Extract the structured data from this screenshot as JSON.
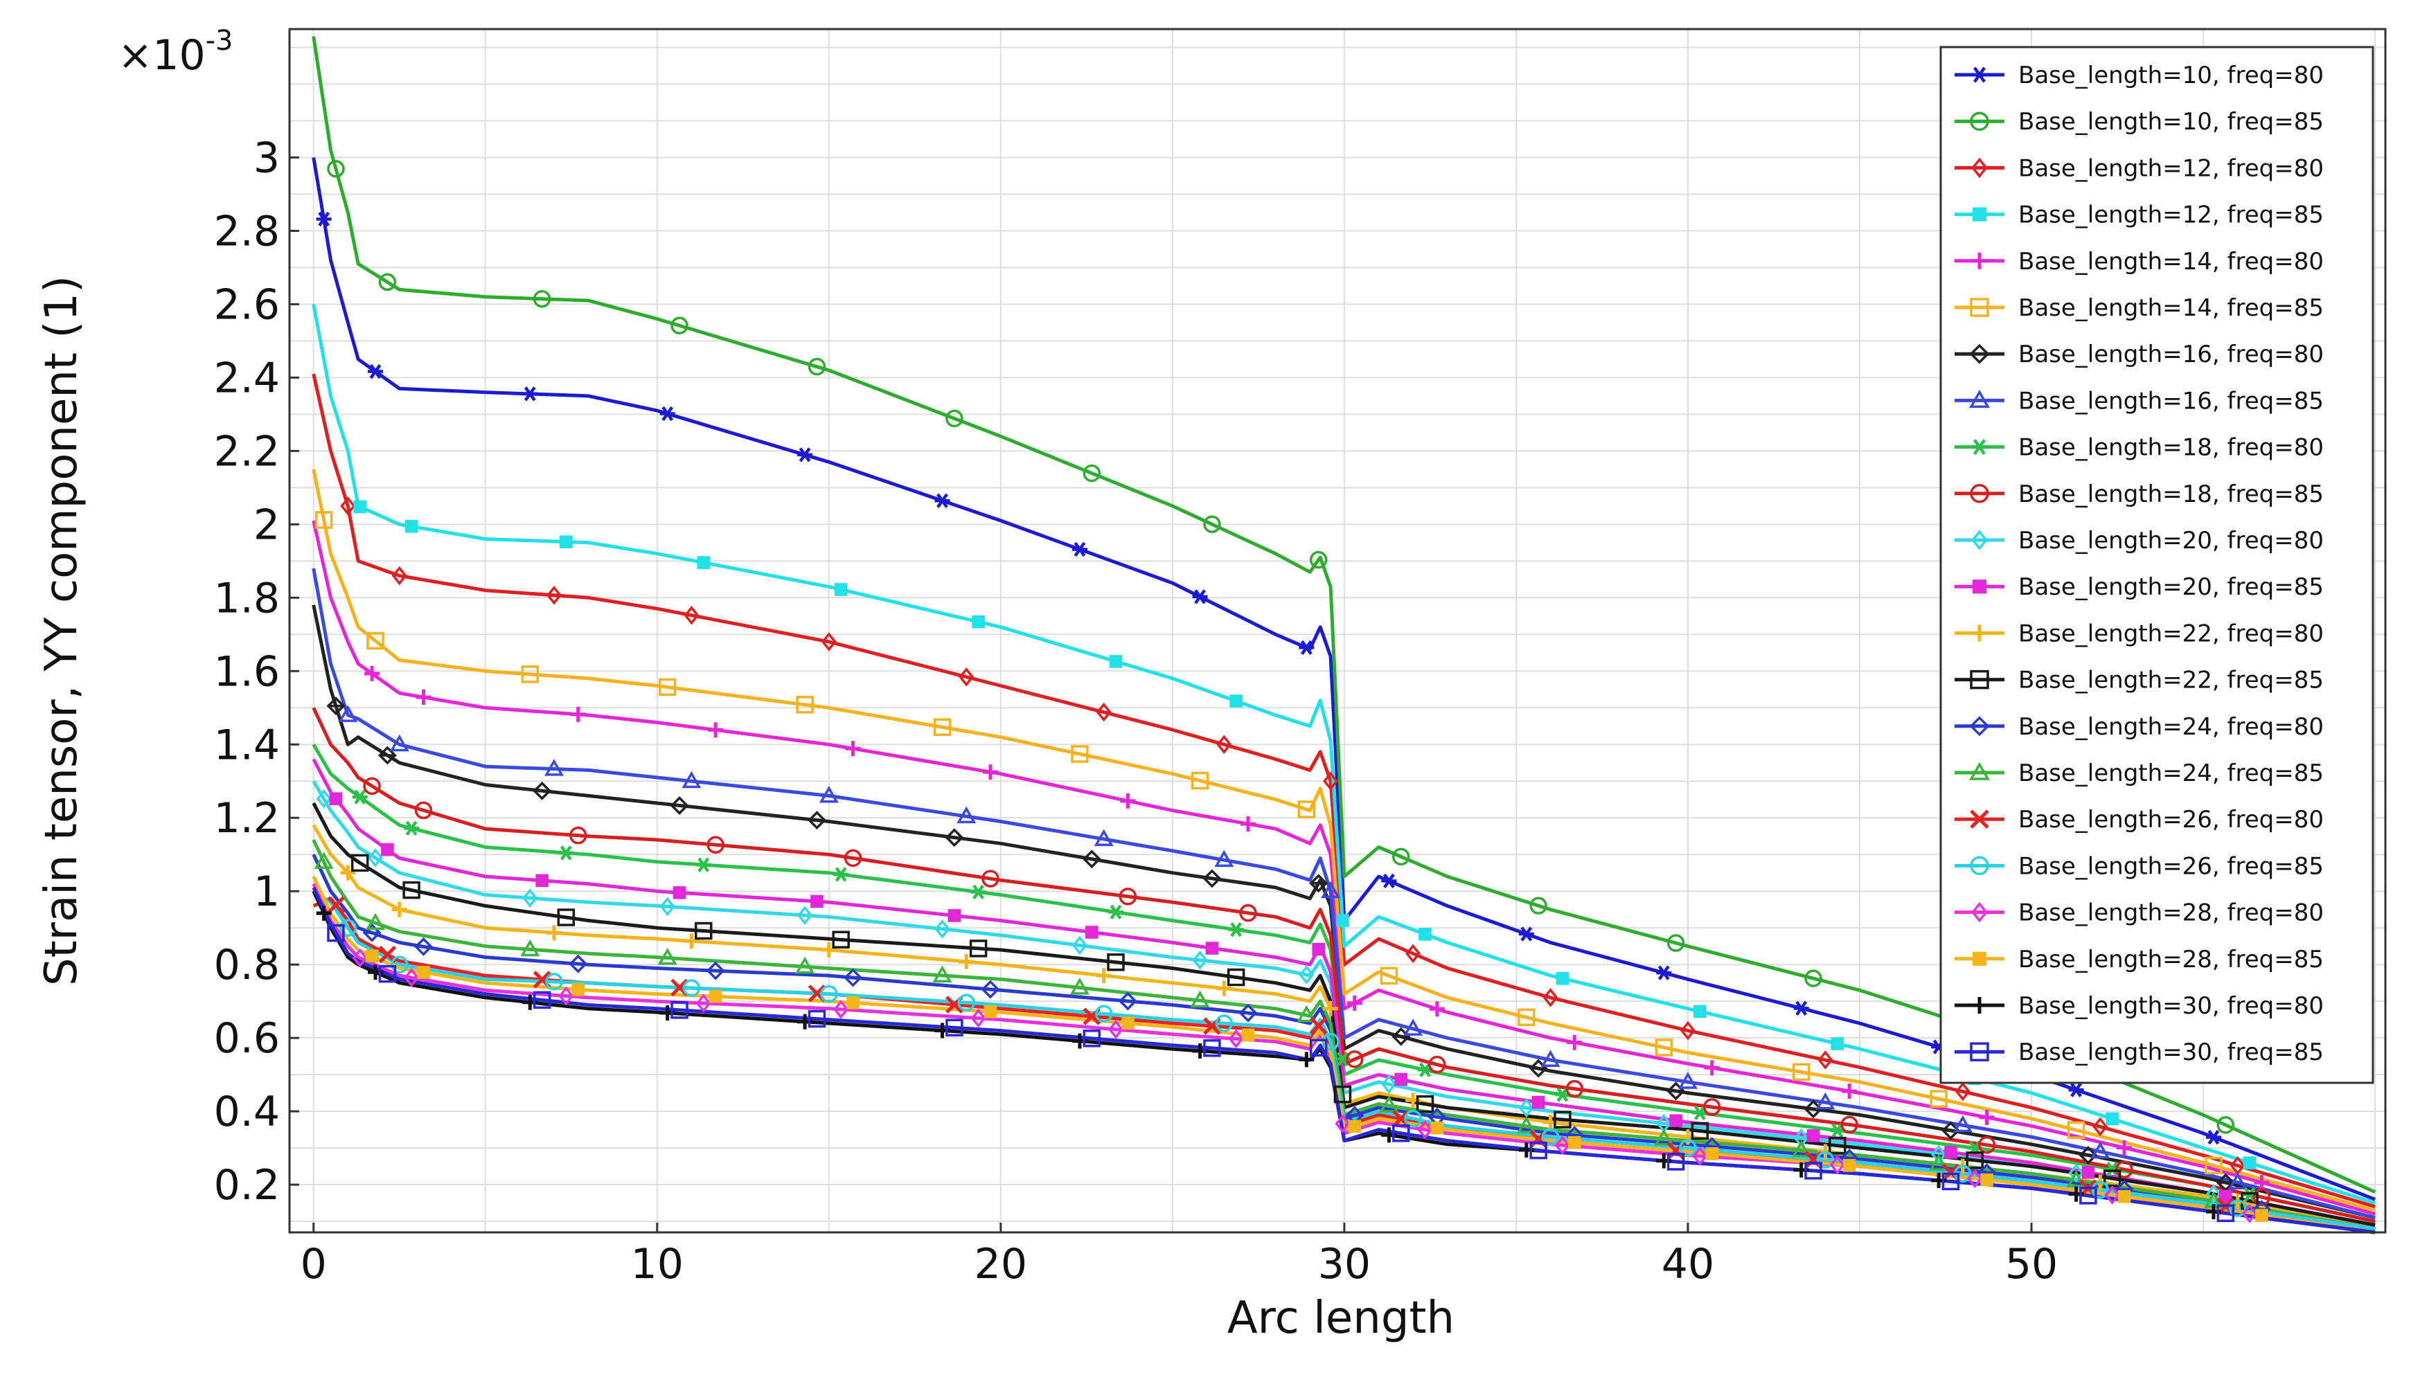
{
  "chart_data": {
    "type": "line",
    "title": "",
    "xlabel": "Arc length",
    "ylabel": "Strain tensor, YY component (1)",
    "y_multiplier_label": "×10",
    "y_multiplier_exp": "-3",
    "xlim": [
      -0.7,
      60.3
    ],
    "ylim": [
      0.07,
      3.35
    ],
    "xticks": [
      0,
      10,
      20,
      30,
      40,
      50
    ],
    "yticks": [
      0.2,
      0.4,
      0.6,
      0.8,
      1,
      1.2,
      1.4,
      1.6,
      1.8,
      2,
      2.2,
      2.4,
      2.6,
      2.8,
      3
    ],
    "ytick_labels": [
      "0.2",
      "0.4",
      "0.6",
      "0.8",
      "1",
      "1.2",
      "1.4",
      "1.6",
      "1.8",
      "2",
      "2.2",
      "2.4",
      "2.6",
      "2.8",
      "3"
    ],
    "xtick_labels": [
      "0",
      "10",
      "20",
      "30",
      "40",
      "50"
    ],
    "grid": true,
    "legend_position": "top-right",
    "x": [
      0,
      0.5,
      1,
      1.3,
      2.5,
      5,
      8,
      10,
      15,
      20,
      25,
      28,
      29,
      29.3,
      29.6,
      30,
      31,
      33,
      36,
      40,
      45,
      50,
      55,
      60
    ],
    "series": [
      {
        "name": "Base_length=10, freq=80",
        "color": "#1b1bd6",
        "marker": "asterisk",
        "values": [
          3.0,
          2.72,
          2.55,
          2.45,
          2.37,
          2.36,
          2.35,
          2.31,
          2.17,
          2.01,
          1.84,
          1.7,
          1.66,
          1.72,
          1.64,
          0.92,
          1.04,
          0.96,
          0.86,
          0.76,
          0.64,
          0.5,
          0.34,
          0.16
        ]
      },
      {
        "name": "Base_length=10, freq=85",
        "color": "#2eac2e",
        "marker": "circle",
        "values": [
          3.33,
          3.02,
          2.85,
          2.71,
          2.64,
          2.62,
          2.61,
          2.56,
          2.42,
          2.24,
          2.05,
          1.92,
          1.87,
          1.91,
          1.83,
          1.04,
          1.12,
          1.04,
          0.95,
          0.85,
          0.73,
          0.58,
          0.39,
          0.18
        ]
      },
      {
        "name": "Base_length=12, freq=80",
        "color": "#e02020",
        "marker": "diamond",
        "values": [
          2.41,
          2.2,
          2.05,
          1.9,
          1.86,
          1.82,
          1.8,
          1.77,
          1.68,
          1.56,
          1.44,
          1.36,
          1.33,
          1.38,
          1.3,
          0.8,
          0.87,
          0.79,
          0.71,
          0.62,
          0.52,
          0.41,
          0.28,
          0.14
        ]
      },
      {
        "name": "Base_length=12, freq=85",
        "color": "#22e0e8",
        "marker": "square-filled",
        "values": [
          2.6,
          2.35,
          2.2,
          2.05,
          2.0,
          1.96,
          1.95,
          1.92,
          1.83,
          1.72,
          1.58,
          1.48,
          1.45,
          1.52,
          1.41,
          0.85,
          0.93,
          0.86,
          0.77,
          0.68,
          0.57,
          0.45,
          0.3,
          0.15
        ]
      },
      {
        "name": "Base_length=14, freq=80",
        "color": "#e824d8",
        "marker": "plus",
        "values": [
          2.01,
          1.8,
          1.68,
          1.62,
          1.54,
          1.5,
          1.48,
          1.46,
          1.4,
          1.32,
          1.22,
          1.17,
          1.13,
          1.18,
          1.1,
          0.68,
          0.73,
          0.67,
          0.6,
          0.53,
          0.45,
          0.36,
          0.25,
          0.12
        ]
      },
      {
        "name": "Base_length=14, freq=85",
        "color": "#f5b21e",
        "marker": "square",
        "values": [
          2.15,
          1.92,
          1.8,
          1.72,
          1.63,
          1.6,
          1.58,
          1.56,
          1.5,
          1.42,
          1.32,
          1.25,
          1.22,
          1.28,
          1.18,
          0.72,
          0.78,
          0.71,
          0.64,
          0.56,
          0.48,
          0.38,
          0.26,
          0.13
        ]
      },
      {
        "name": "Base_length=16, freq=80",
        "color": "#222222",
        "marker": "open-diamond",
        "values": [
          1.78,
          1.55,
          1.4,
          1.42,
          1.35,
          1.29,
          1.26,
          1.24,
          1.19,
          1.13,
          1.05,
          1.01,
          0.98,
          1.03,
          0.96,
          0.57,
          0.62,
          0.57,
          0.51,
          0.45,
          0.39,
          0.31,
          0.22,
          0.11
        ]
      },
      {
        "name": "Base_length=16, freq=85",
        "color": "#3a4ae0",
        "marker": "triangle",
        "values": [
          1.88,
          1.62,
          1.48,
          1.47,
          1.4,
          1.34,
          1.33,
          1.31,
          1.26,
          1.19,
          1.11,
          1.06,
          1.03,
          1.09,
          1.0,
          0.6,
          0.65,
          0.6,
          0.54,
          0.48,
          0.41,
          0.33,
          0.23,
          0.11
        ]
      },
      {
        "name": "Base_length=18, freq=80",
        "color": "#2ac04a",
        "marker": "asterisk",
        "values": [
          1.4,
          1.32,
          1.28,
          1.26,
          1.18,
          1.12,
          1.1,
          1.08,
          1.05,
          0.99,
          0.92,
          0.88,
          0.86,
          0.91,
          0.84,
          0.5,
          0.54,
          0.5,
          0.45,
          0.4,
          0.34,
          0.28,
          0.2,
          0.1
        ]
      },
      {
        "name": "Base_length=18, freq=85",
        "color": "#d81e1e",
        "marker": "circle",
        "values": [
          1.5,
          1.4,
          1.35,
          1.31,
          1.24,
          1.17,
          1.15,
          1.14,
          1.1,
          1.03,
          0.97,
          0.93,
          0.9,
          0.95,
          0.88,
          0.53,
          0.57,
          0.52,
          0.47,
          0.42,
          0.36,
          0.29,
          0.2,
          0.1
        ]
      },
      {
        "name": "Base_length=20, freq=80",
        "color": "#30d8e8",
        "marker": "diamond",
        "values": [
          1.3,
          1.22,
          1.16,
          1.12,
          1.05,
          0.99,
          0.97,
          0.96,
          0.93,
          0.88,
          0.82,
          0.79,
          0.77,
          0.81,
          0.75,
          0.45,
          0.48,
          0.44,
          0.4,
          0.36,
          0.31,
          0.25,
          0.18,
          0.09
        ]
      },
      {
        "name": "Base_length=20, freq=85",
        "color": "#e028d8",
        "marker": "square-filled",
        "values": [
          1.36,
          1.27,
          1.21,
          1.17,
          1.09,
          1.04,
          1.02,
          1.0,
          0.97,
          0.92,
          0.86,
          0.82,
          0.8,
          0.85,
          0.78,
          0.47,
          0.5,
          0.46,
          0.42,
          0.37,
          0.32,
          0.26,
          0.18,
          0.09
        ]
      },
      {
        "name": "Base_length=22, freq=80",
        "color": "#f2b418",
        "marker": "plus",
        "values": [
          1.18,
          1.1,
          1.05,
          1.01,
          0.95,
          0.9,
          0.88,
          0.87,
          0.84,
          0.8,
          0.75,
          0.72,
          0.7,
          0.74,
          0.68,
          0.42,
          0.45,
          0.41,
          0.37,
          0.33,
          0.28,
          0.23,
          0.17,
          0.09
        ]
      },
      {
        "name": "Base_length=22, freq=85",
        "color": "#1a1a1a",
        "marker": "square",
        "values": [
          1.24,
          1.15,
          1.1,
          1.08,
          1.01,
          0.96,
          0.92,
          0.9,
          0.87,
          0.84,
          0.79,
          0.75,
          0.73,
          0.77,
          0.7,
          0.41,
          0.44,
          0.41,
          0.38,
          0.35,
          0.3,
          0.25,
          0.18,
          0.09
        ]
      },
      {
        "name": "Base_length=24, freq=80",
        "color": "#2a3ad0",
        "marker": "open-diamond",
        "values": [
          1.1,
          1.0,
          0.94,
          0.9,
          0.86,
          0.82,
          0.8,
          0.79,
          0.77,
          0.73,
          0.69,
          0.66,
          0.64,
          0.68,
          0.62,
          0.38,
          0.41,
          0.38,
          0.34,
          0.31,
          0.27,
          0.22,
          0.16,
          0.08
        ]
      },
      {
        "name": "Base_length=24, freq=85",
        "color": "#3cb43c",
        "marker": "triangle",
        "values": [
          1.14,
          1.04,
          0.97,
          0.93,
          0.89,
          0.85,
          0.83,
          0.82,
          0.79,
          0.76,
          0.71,
          0.68,
          0.66,
          0.7,
          0.64,
          0.39,
          0.42,
          0.39,
          0.35,
          0.32,
          0.28,
          0.23,
          0.16,
          0.08
        ]
      },
      {
        "name": "Base_length=26, freq=80",
        "color": "#e62222",
        "marker": "cross",
        "values": [
          0.96,
          0.98,
          0.92,
          0.87,
          0.81,
          0.77,
          0.75,
          0.74,
          0.72,
          0.68,
          0.64,
          0.62,
          0.6,
          0.64,
          0.58,
          0.36,
          0.39,
          0.36,
          0.32,
          0.29,
          0.26,
          0.21,
          0.15,
          0.08
        ]
      },
      {
        "name": "Base_length=26, freq=85",
        "color": "#28d2e2",
        "marker": "circle",
        "values": [
          1.0,
          0.97,
          0.9,
          0.86,
          0.8,
          0.76,
          0.75,
          0.74,
          0.72,
          0.69,
          0.65,
          0.63,
          0.61,
          0.65,
          0.59,
          0.37,
          0.4,
          0.36,
          0.33,
          0.3,
          0.26,
          0.21,
          0.15,
          0.08
        ]
      },
      {
        "name": "Base_length=28, freq=80",
        "color": "#ea30de",
        "marker": "diamond",
        "values": [
          1.02,
          0.92,
          0.85,
          0.82,
          0.77,
          0.73,
          0.71,
          0.7,
          0.68,
          0.65,
          0.61,
          0.59,
          0.57,
          0.61,
          0.55,
          0.34,
          0.37,
          0.34,
          0.31,
          0.28,
          0.25,
          0.2,
          0.14,
          0.07
        ]
      },
      {
        "name": "Base_length=28, freq=85",
        "color": "#f5b41a",
        "marker": "square-filled",
        "values": [
          1.04,
          0.94,
          0.87,
          0.84,
          0.79,
          0.75,
          0.73,
          0.72,
          0.7,
          0.67,
          0.63,
          0.6,
          0.58,
          0.62,
          0.56,
          0.35,
          0.38,
          0.35,
          0.32,
          0.29,
          0.25,
          0.2,
          0.14,
          0.07
        ]
      },
      {
        "name": "Base_length=30, freq=80",
        "color": "#111111",
        "marker": "plus",
        "values": [
          1.0,
          0.9,
          0.82,
          0.8,
          0.75,
          0.71,
          0.68,
          0.67,
          0.64,
          0.61,
          0.57,
          0.55,
          0.54,
          0.57,
          0.52,
          0.32,
          0.34,
          0.31,
          0.29,
          0.26,
          0.23,
          0.19,
          0.13,
          0.07
        ]
      },
      {
        "name": "Base_length=30, freq=85",
        "color": "#2828d8",
        "marker": "square",
        "values": [
          1.01,
          0.91,
          0.83,
          0.81,
          0.76,
          0.72,
          0.69,
          0.68,
          0.65,
          0.62,
          0.58,
          0.56,
          0.54,
          0.58,
          0.53,
          0.32,
          0.35,
          0.32,
          0.29,
          0.26,
          0.23,
          0.19,
          0.13,
          0.07
        ]
      }
    ]
  }
}
